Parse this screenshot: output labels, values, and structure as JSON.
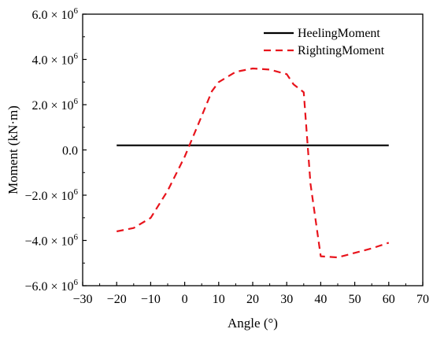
{
  "chart_data": {
    "type": "line",
    "xlabel": "Angle (°)",
    "ylabel": "Moment (kN·m)",
    "xlim": [
      -30,
      70
    ],
    "ylim": [
      -6000000,
      6000000
    ],
    "xticks": [
      -30,
      -20,
      -10,
      0,
      10,
      20,
      30,
      40,
      50,
      60,
      70
    ],
    "xtick_labels": [
      "−30",
      "−20",
      "−10",
      "0",
      "10",
      "20",
      "30",
      "40",
      "50",
      "60",
      "70"
    ],
    "yticks": [
      {
        "value": 6000000,
        "mant": "6.0 × 10",
        "exp": "6"
      },
      {
        "value": 4000000,
        "mant": "4.0 × 10",
        "exp": "6"
      },
      {
        "value": 2000000,
        "mant": "2.0 × 10",
        "exp": "6"
      },
      {
        "value": 0,
        "mant": "0.0",
        "exp": ""
      },
      {
        "value": -2000000,
        "mant": "−2.0 × 10",
        "exp": "6"
      },
      {
        "value": -4000000,
        "mant": "−4.0 × 10",
        "exp": "6"
      },
      {
        "value": -6000000,
        "mant": "−6.0 × 10",
        "exp": "6"
      }
    ],
    "grid": false,
    "legend_position": "top-right",
    "series": [
      {
        "name": "HeelingMoment",
        "color": "#000000",
        "dash": "solid",
        "x": [
          -20,
          60
        ],
        "y": [
          200000,
          200000
        ]
      },
      {
        "name": "RightingMoment",
        "color": "#e8141c",
        "dash": "dashed",
        "x": [
          -20,
          -15,
          -10,
          -5,
          0,
          5,
          8,
          10,
          15,
          20,
          25,
          30,
          32,
          35,
          37,
          40,
          45,
          50,
          55,
          60
        ],
        "y": [
          -3600000,
          -3450000,
          -3000000,
          -1800000,
          -300000,
          1500000,
          2600000,
          3000000,
          3450000,
          3600000,
          3550000,
          3350000,
          2900000,
          2550000,
          -1500000,
          -4700000,
          -4750000,
          -4550000,
          -4350000,
          -4100000
        ]
      }
    ]
  }
}
